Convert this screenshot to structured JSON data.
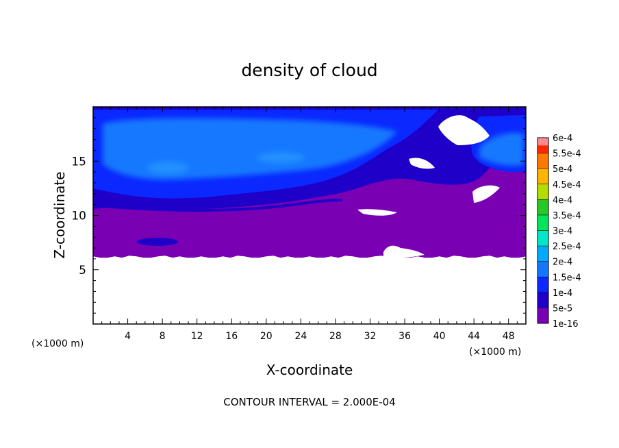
{
  "chart_data": {
    "type": "heatmap",
    "title": "density of cloud",
    "xlabel": "X-coordinate",
    "ylabel": "Z-coordinate",
    "x_unit_label": "(×1000 m)",
    "z_unit_label": "(×1000 m)",
    "xlim": [
      0,
      50
    ],
    "ylim": [
      0,
      20
    ],
    "x_ticks": [
      4,
      8,
      12,
      16,
      20,
      24,
      28,
      32,
      36,
      40,
      44,
      48
    ],
    "x_tick_labels": [
      "4",
      "8",
      "12",
      "16",
      "20",
      "24",
      "28",
      "32",
      "36",
      "40",
      "44",
      "48"
    ],
    "y_ticks": [
      5,
      10,
      15
    ],
    "y_tick_labels": [
      "5",
      "10",
      "15"
    ],
    "colorbar": {
      "levels": [
        "1e-16",
        "5e-5",
        "1e-4",
        "1.5e-4",
        "2e-4",
        "2.5e-4",
        "3e-4",
        "3.5e-4",
        "4e-4",
        "4.5e-4",
        "5e-4",
        "5.5e-4",
        "6e-4"
      ],
      "colors": [
        "#7a00b4",
        "#1e00c8",
        "#0a28ff",
        "#1478ff",
        "#00aaff",
        "#00e6c8",
        "#00e65a",
        "#28c828",
        "#b4dc00",
        "#ffb400",
        "#ff7800",
        "#ff2800",
        "#ff8c8c"
      ]
    },
    "field_note_colors": {
      "no_data": "#ffffff",
      "dark_band": "#1e00c8"
    },
    "contour_interval_text": "CONTOUR INTERVAL = 2.000E-04",
    "ground_level_km": 6.1,
    "upper_layer_density": "1e-4 to 1.5e-4",
    "lower_layer_density": "1e-16 to 5e-5",
    "grid": false
  }
}
